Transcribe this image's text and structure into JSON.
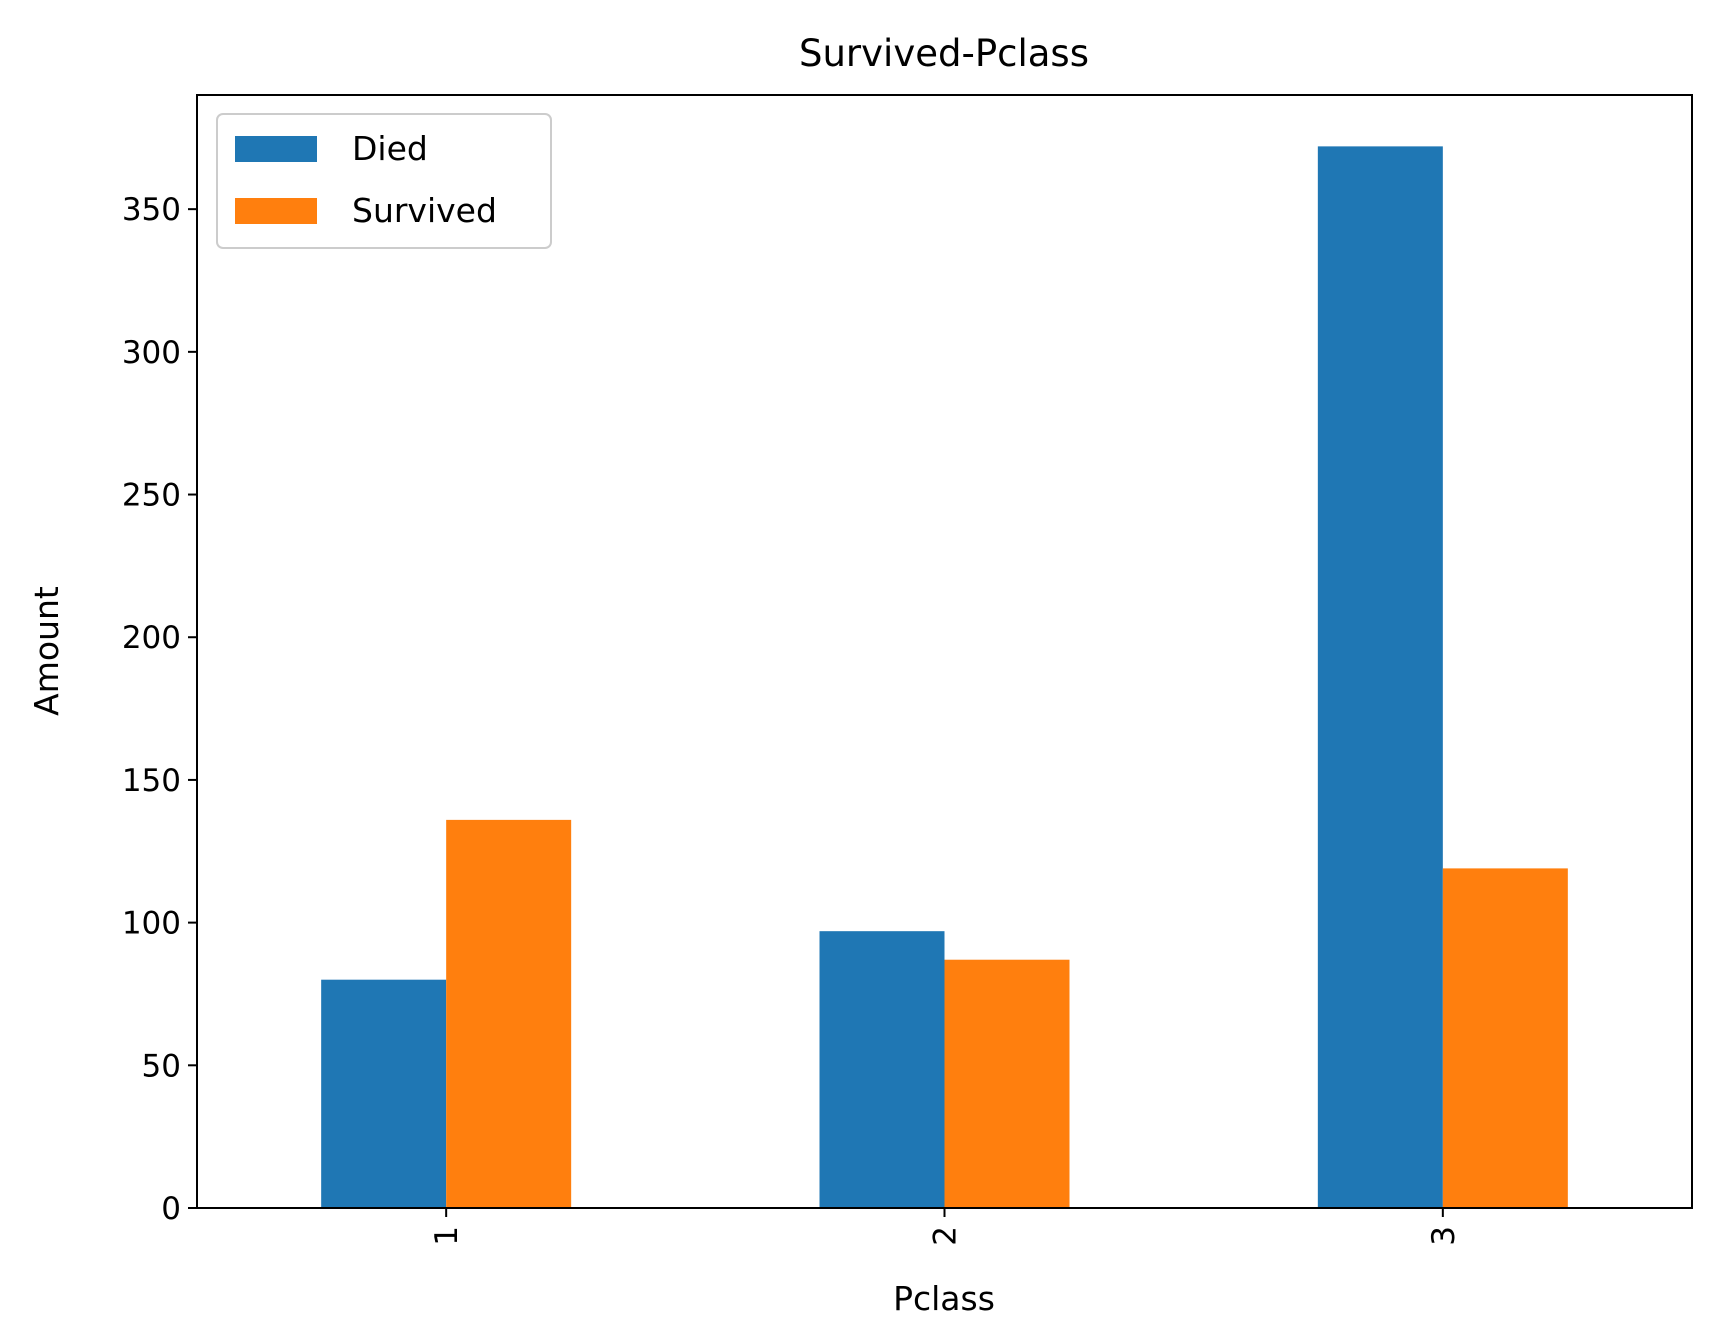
{
  "chart_data": {
    "type": "bar",
    "title": "Survived-Pclass",
    "xlabel": "Pclass",
    "ylabel": "Amount",
    "categories": [
      "1",
      "2",
      "3"
    ],
    "series": [
      {
        "name": "Died",
        "values": [
          80,
          97,
          372
        ],
        "color": "#1f77b4"
      },
      {
        "name": "Survived",
        "values": [
          136,
          87,
          119
        ],
        "color": "#ff7f0e"
      }
    ],
    "ylim": [
      0,
      390
    ],
    "yticks": [
      0,
      50,
      100,
      150,
      200,
      250,
      300,
      350
    ],
    "xtick_rotation": 90,
    "grid": false,
    "legend": "upper-left"
  }
}
